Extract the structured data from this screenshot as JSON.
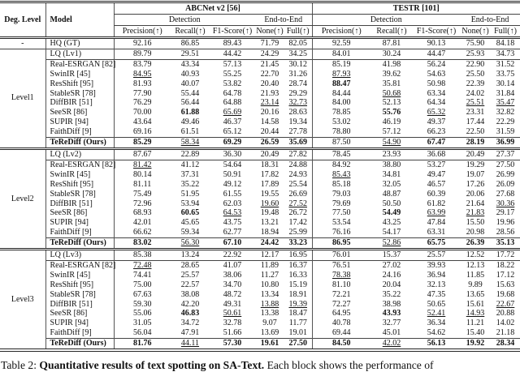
{
  "table": {
    "corner": {
      "deg_level": "Deg. Level",
      "model": "Model"
    },
    "groups": [
      {
        "name": "ABCNet v2 [56]",
        "detection": "Detection",
        "end_to_end": "End-to-End"
      },
      {
        "name": "TESTR [101]",
        "detection": "Detection",
        "end_to_end": "End-to-End"
      }
    ],
    "metric_headers": [
      "Precision(↑)",
      "Recall(↑)",
      "F1-Score(↑)",
      "None(↑)",
      "Full(↑)"
    ],
    "blocks": [
      {
        "level": "-",
        "rows": [
          {
            "model": "HQ (GT)",
            "model_style": "",
            "values": [
              "92.16",
              "86.85",
              "89.43",
              "71.79",
              "82.05",
              "92.59",
              "87.81",
              "90.13",
              "75.90",
              "84.18"
            ],
            "styles": [
              "",
              "",
              "",
              "",
              "",
              "",
              "",
              "",
              "",
              ""
            ]
          }
        ]
      },
      {
        "level": "Level1",
        "rows": [
          {
            "model": "LQ (Lv1)",
            "model_style": "",
            "values": [
              "89.79",
              "29.51",
              "44.42",
              "24.29",
              "34.25",
              "84.01",
              "30.24",
              "44.47",
              "25.93",
              "34.73"
            ],
            "styles": [
              "",
              "",
              "",
              "",
              "",
              "",
              "",
              "",
              "",
              ""
            ]
          },
          {
            "model": "Real-ESRGAN [82]",
            "model_style": "",
            "values": [
              "83.79",
              "43.34",
              "57.13",
              "21.45",
              "30.12",
              "85.19",
              "41.98",
              "56.24",
              "22.90",
              "31.52"
            ],
            "styles": [
              "",
              "",
              "",
              "",
              "",
              "",
              "",
              "",
              "",
              ""
            ]
          },
          {
            "model": "SwinIR [45]",
            "model_style": "",
            "values": [
              "84.95",
              "40.93",
              "55.25",
              "22.70",
              "31.26",
              "87.93",
              "39.62",
              "54.63",
              "25.50",
              "33.75"
            ],
            "styles": [
              "u",
              "",
              "",
              "",
              "",
              "u",
              "",
              "",
              "",
              ""
            ]
          },
          {
            "model": "ResShift [95]",
            "model_style": "",
            "values": [
              "81.93",
              "40.07",
              "53.82",
              "20.40",
              "28.74",
              "88.47",
              "35.81",
              "50.98",
              "22.39",
              "30.14"
            ],
            "styles": [
              "",
              "",
              "",
              "",
              "",
              "b",
              "",
              "",
              "",
              ""
            ]
          },
          {
            "model": "StableSR [78]",
            "model_style": "",
            "values": [
              "77.90",
              "55.44",
              "64.78",
              "21.93",
              "29.29",
              "84.44",
              "50.68",
              "63.34",
              "24.02",
              "31.84"
            ],
            "styles": [
              "",
              "",
              "",
              "",
              "",
              "",
              "u",
              "",
              "",
              ""
            ]
          },
          {
            "model": "DiffBIR [51]",
            "model_style": "",
            "values": [
              "76.29",
              "56.44",
              "64.88",
              "23.14",
              "32.73",
              "84.00",
              "52.13",
              "64.34",
              "25.51",
              "35.47"
            ],
            "styles": [
              "",
              "",
              "",
              "u",
              "u",
              "",
              "",
              "",
              "u",
              "u"
            ]
          },
          {
            "model": "SeeSR [86]",
            "model_style": "",
            "values": [
              "70.00",
              "61.88",
              "65.69",
              "20.16",
              "28.63",
              "78.85",
              "55.76",
              "65.32",
              "23.31",
              "32.82"
            ],
            "styles": [
              "",
              "b",
              "u",
              "",
              "",
              "",
              "b",
              "u",
              "",
              ""
            ]
          },
          {
            "model": "SUPIR [94]",
            "model_style": "",
            "values": [
              "43.64",
              "49.46",
              "46.37",
              "14.58",
              "19.34",
              "53.02",
              "46.19",
              "49.37",
              "17.44",
              "22.29"
            ],
            "styles": [
              "",
              "",
              "",
              "",
              "",
              "",
              "",
              "",
              "",
              ""
            ]
          },
          {
            "model": "FaithDiff [9]",
            "model_style": "",
            "values": [
              "69.16",
              "61.51",
              "65.12",
              "20.44",
              "27.78",
              "78.80",
              "57.12",
              "66.23",
              "22.50",
              "31.59"
            ],
            "styles": [
              "",
              "",
              "",
              "",
              "",
              "",
              "",
              "",
              "",
              ""
            ]
          },
          {
            "model": "TeReDiff (Ours)",
            "model_style": "b",
            "values": [
              "85.29",
              "58.34",
              "69.29",
              "26.59",
              "35.69",
              "87.50",
              "54.90",
              "67.47",
              "28.19",
              "36.99"
            ],
            "styles": [
              "b",
              "u",
              "b",
              "b",
              "b",
              "",
              "u",
              "b",
              "b",
              "b"
            ]
          }
        ]
      },
      {
        "level": "Level2",
        "rows": [
          {
            "model": "LQ (Lv2)",
            "model_style": "",
            "values": [
              "87.67",
              "22.89",
              "36.30",
              "20.49",
              "27.82",
              "78.45",
              "23.93",
              "36.68",
              "20.49",
              "27.37"
            ],
            "styles": [
              "",
              "",
              "",
              "",
              "",
              "",
              "",
              "",
              "",
              ""
            ]
          },
          {
            "model": "Real-ESRGAN [82]",
            "model_style": "",
            "values": [
              "81.42",
              "41.12",
              "54.64",
              "18.31",
              "24.88",
              "84.92",
              "38.80",
              "53.27",
              "19.29",
              "27.50"
            ],
            "styles": [
              "u",
              "",
              "",
              "",
              "",
              "",
              "",
              "",
              "",
              ""
            ]
          },
          {
            "model": "SwinIR [45]",
            "model_style": "",
            "values": [
              "80.14",
              "37.31",
              "50.91",
              "17.82",
              "24.93",
              "85.43",
              "34.81",
              "49.47",
              "19.07",
              "26.99"
            ],
            "styles": [
              "",
              "",
              "",
              "",
              "",
              "u",
              "",
              "",
              "",
              ""
            ]
          },
          {
            "model": "ResShift [95]",
            "model_style": "",
            "values": [
              "81.11",
              "35.22",
              "49.12",
              "17.89",
              "25.54",
              "85.18",
              "32.05",
              "46.57",
              "17.26",
              "26.09"
            ],
            "styles": [
              "",
              "",
              "",
              "",
              "",
              "",
              "",
              "",
              "",
              ""
            ]
          },
          {
            "model": "StableSR [78]",
            "model_style": "",
            "values": [
              "75.49",
              "51.95",
              "61.55",
              "19.55",
              "26.69",
              "79.03",
              "48.87",
              "60.39",
              "20.06",
              "27.68"
            ],
            "styles": [
              "",
              "",
              "",
              "",
              "",
              "",
              "",
              "",
              "",
              ""
            ]
          },
          {
            "model": "DiffBIR [51]",
            "model_style": "",
            "values": [
              "72.96",
              "53.94",
              "62.03",
              "19.60",
              "27.52",
              "79.69",
              "50.50",
              "61.82",
              "21.64",
              "30.36"
            ],
            "styles": [
              "",
              "",
              "",
              "u",
              "u",
              "",
              "",
              "",
              "",
              "u"
            ]
          },
          {
            "model": "SeeSR [86]",
            "model_style": "",
            "values": [
              "68.93",
              "60.65",
              "64.53",
              "19.48",
              "26.72",
              "77.50",
              "54.49",
              "63.99",
              "21.83",
              "29.17"
            ],
            "styles": [
              "",
              "b",
              "u",
              "",
              "",
              "",
              "b",
              "u",
              "u",
              ""
            ]
          },
          {
            "model": "SUPIR [94]",
            "model_style": "",
            "values": [
              "42.01",
              "45.65",
              "43.75",
              "13.21",
              "17.42",
              "53.54",
              "43.25",
              "47.84",
              "15.50",
              "19.96"
            ],
            "styles": [
              "",
              "",
              "",
              "",
              "",
              "",
              "",
              "",
              "",
              ""
            ]
          },
          {
            "model": "FaithDiff [9]",
            "model_style": "",
            "values": [
              "66.62",
              "59.34",
              "62.77",
              "18.94",
              "25.99",
              "76.16",
              "54.17",
              "63.31",
              "20.98",
              "28.56"
            ],
            "styles": [
              "",
              "",
              "",
              "",
              "",
              "",
              "",
              "",
              "",
              ""
            ]
          },
          {
            "model": "TeReDiff (Ours)",
            "model_style": "b",
            "values": [
              "83.02",
              "56.30",
              "67.10",
              "24.42",
              "33.23",
              "86.95",
              "52.86",
              "65.75",
              "26.39",
              "35.13"
            ],
            "styles": [
              "b",
              "u",
              "b",
              "b",
              "b",
              "b",
              "u",
              "b",
              "b",
              "b"
            ]
          }
        ]
      },
      {
        "level": "Level3",
        "rows": [
          {
            "model": "LQ (Lv3)",
            "model_style": "",
            "values": [
              "85.38",
              "13.24",
              "22.92",
              "12.17",
              "16.95",
              "76.01",
              "15.37",
              "25.57",
              "12.52",
              "17.72"
            ],
            "styles": [
              "",
              "",
              "",
              "",
              "",
              "",
              "",
              "",
              "",
              ""
            ]
          },
          {
            "model": "Real-ESRGAN [82]",
            "model_style": "",
            "values": [
              "72.48",
              "28.65",
              "41.07",
              "11.89",
              "16.37",
              "76.51",
              "27.02",
              "39.93",
              "12.13",
              "18.22"
            ],
            "styles": [
              "u",
              "",
              "",
              "",
              "",
              "",
              "",
              "",
              "",
              ""
            ]
          },
          {
            "model": "SwinIR [45]",
            "model_style": "",
            "values": [
              "74.41",
              "25.57",
              "38.06",
              "11.27",
              "16.33",
              "78.38",
              "24.16",
              "36.94",
              "11.85",
              "17.12"
            ],
            "styles": [
              "",
              "",
              "",
              "",
              "",
              "u",
              "",
              "",
              "",
              ""
            ]
          },
          {
            "model": "ResShift [95]",
            "model_style": "",
            "values": [
              "75.00",
              "22.57",
              "34.70",
              "10.80",
              "15.19",
              "81.10",
              "20.04",
              "32.13",
              "9.89",
              "15.63"
            ],
            "styles": [
              "",
              "",
              "",
              "",
              "",
              "",
              "",
              "",
              "",
              ""
            ]
          },
          {
            "model": "StableSR [78]",
            "model_style": "",
            "values": [
              "67.63",
              "38.08",
              "48.72",
              "13.34",
              "18.91",
              "72.21",
              "35.22",
              "47.35",
              "13.65",
              "19.68"
            ],
            "styles": [
              "",
              "",
              "",
              "",
              "",
              "",
              "",
              "",
              "",
              ""
            ]
          },
          {
            "model": "DiffBIR [51]",
            "model_style": "",
            "values": [
              "59.30",
              "42.20",
              "49.31",
              "13.88",
              "19.39",
              "72.27",
              "38.98",
              "50.65",
              "15.61",
              "22.67"
            ],
            "styles": [
              "",
              "",
              "",
              "u",
              "u",
              "",
              "",
              "",
              "",
              "u"
            ]
          },
          {
            "model": "SeeSR [86]",
            "model_style": "",
            "values": [
              "55.06",
              "46.83",
              "50.61",
              "13.38",
              "18.47",
              "64.95",
              "43.93",
              "52.41",
              "14.93",
              "20.88"
            ],
            "styles": [
              "",
              "b",
              "u",
              "",
              "",
              "",
              "b",
              "u",
              "u",
              ""
            ]
          },
          {
            "model": "SUPIR [94]",
            "model_style": "",
            "values": [
              "31.05",
              "34.72",
              "32.78",
              "9.07",
              "11.77",
              "40.78",
              "32.77",
              "36.34",
              "11.21",
              "14.02"
            ],
            "styles": [
              "",
              "",
              "",
              "",
              "",
              "",
              "",
              "",
              "",
              ""
            ]
          },
          {
            "model": "FaithDiff [9]",
            "model_style": "",
            "values": [
              "56.04",
              "47.91",
              "51.66",
              "13.69",
              "19.01",
              "69.44",
              "45.01",
              "54.62",
              "15.40",
              "21.18"
            ],
            "styles": [
              "",
              "",
              "",
              "",
              "",
              "",
              "",
              "",
              "",
              ""
            ]
          },
          {
            "model": "TeReDiff (Ours)",
            "model_style": "b",
            "values": [
              "81.76",
              "44.11",
              "57.30",
              "19.61",
              "27.50",
              "84.50",
              "42.02",
              "56.13",
              "19.92",
              "28.34"
            ],
            "styles": [
              "b",
              "u",
              "b",
              "b",
              "b",
              "b",
              "u",
              "b",
              "b",
              "b"
            ]
          }
        ]
      }
    ]
  },
  "caption": {
    "prefix": "Table 2: ",
    "bold": "Quantitative results of text spotting on SA-Text.",
    "rest": " Each block shows the performance of"
  }
}
